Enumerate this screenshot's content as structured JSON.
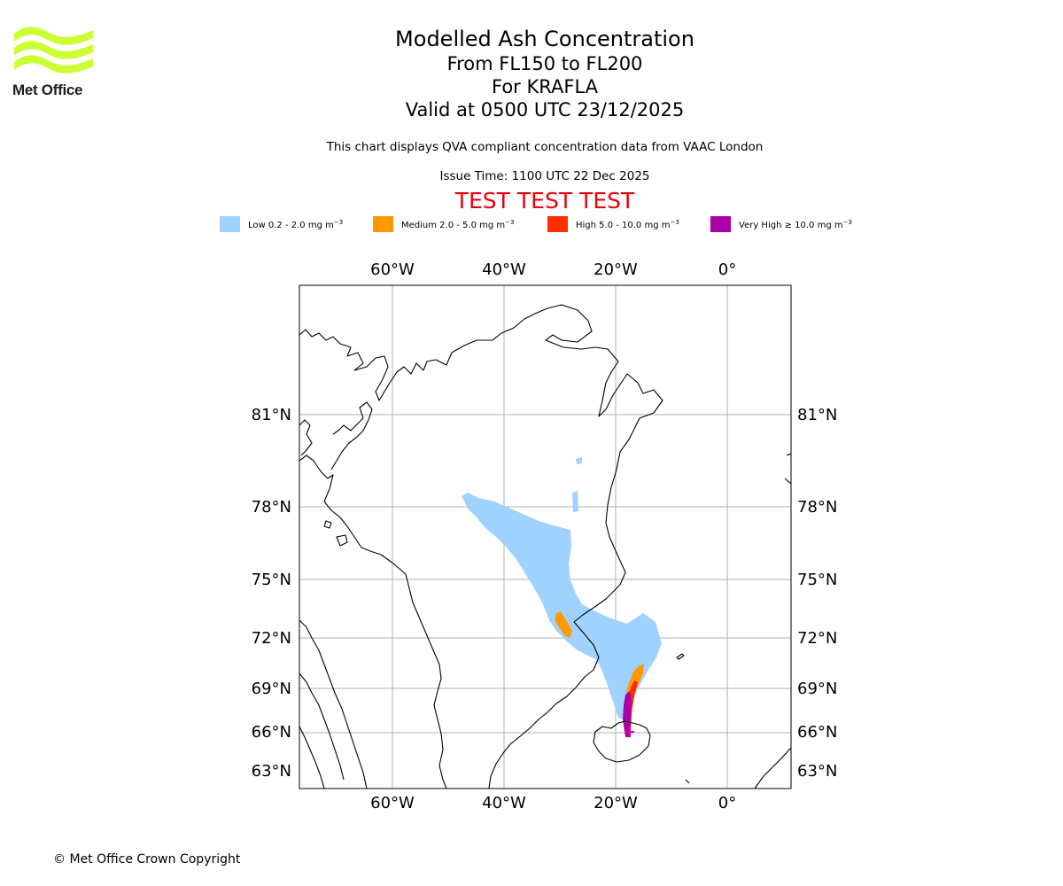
{
  "logo": {
    "text": "Met Office",
    "color": "#ccff33"
  },
  "title": {
    "main": "Modelled Ash Concentration",
    "levels": "From FL150 to FL200",
    "volcano": "For KRAFLA",
    "valid": "Valid at 0500 UTC 23/12/2025"
  },
  "note": "This chart displays QVA compliant concentration data from VAAC London",
  "issue_time": "Issue Time: 1100 UTC 22 Dec 2025",
  "test_banner": "TEST TEST TEST",
  "legend": {
    "unit": "mg m",
    "exponent": "−3",
    "items": [
      {
        "label": "Low 0.2 - 2.0",
        "color": "#a0d2ff"
      },
      {
        "label": "Medium 2.0 - 5.0",
        "color": "#ff9900"
      },
      {
        "label": "High 5.0 - 10.0",
        "color": "#ff2e00"
      },
      {
        "label": "Very High  ≥  10.0",
        "color": "#aa00aa"
      }
    ]
  },
  "map": {
    "lon_labels": [
      "60°W",
      "40°W",
      "20°W",
      "0°"
    ],
    "lat_labels": [
      "81°N",
      "78°N",
      "75°N",
      "72°N",
      "69°N",
      "66°N",
      "63°N"
    ]
  },
  "copyright": "© Met Office Crown Copyright"
}
